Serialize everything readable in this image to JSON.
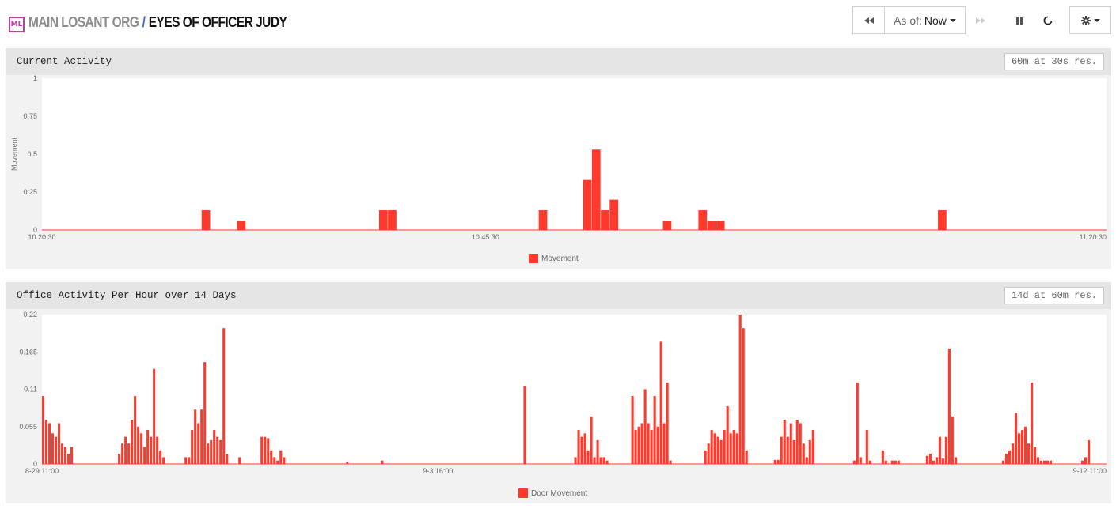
{
  "header": {
    "logo": "ML",
    "org": "MAIN LOSANT ORG",
    "separator": "/",
    "dashboard": "EYES OF OFFICER JUDY",
    "asof_label": "As of:",
    "asof_value": "Now",
    "icons": [
      "rewind-icon",
      "fast-forward-icon",
      "pause-icon",
      "refresh-icon",
      "gear-icon"
    ]
  },
  "colors": {
    "bar": "#ff3a2c",
    "block_bg": "#f2f2f2",
    "head_bg": "#e5e5e5",
    "plot_bg": "#ffffff",
    "brand": "#c0409a",
    "separator": "#3b64d6"
  },
  "blocks": [
    {
      "title": "Current Activity",
      "badge": "60m at 30s res."
    },
    {
      "title": "Office Activity Per Hour over 14 Days",
      "badge": "14d at 60m res."
    }
  ],
  "chart_data": [
    {
      "type": "bar",
      "title": "Current Activity",
      "ylabel": "Movement",
      "ylim": [
        0,
        1
      ],
      "yticks": [
        "0",
        "0.25",
        "0.5",
        "0.75",
        "1"
      ],
      "xticks": [
        "10:20:30",
        "10:45:30",
        "11:20:30"
      ],
      "bins": 120,
      "xtick_bins": [
        0,
        50,
        120
      ],
      "series": [
        {
          "name": "Movement",
          "values": [
            0,
            0,
            0,
            0,
            0,
            0,
            0,
            0,
            0,
            0,
            0,
            0,
            0,
            0,
            0,
            0,
            0,
            0,
            0.13,
            0,
            0,
            0,
            0.06,
            0,
            0,
            0,
            0,
            0,
            0,
            0,
            0,
            0,
            0,
            0,
            0,
            0,
            0,
            0,
            0.13,
            0.13,
            0,
            0,
            0,
            0,
            0,
            0,
            0,
            0,
            0,
            0,
            0,
            0,
            0,
            0,
            0,
            0,
            0.13,
            0,
            0,
            0,
            0,
            0.33,
            0.53,
            0.13,
            0.2,
            0,
            0,
            0,
            0,
            0,
            0.06,
            0,
            0,
            0,
            0.13,
            0.06,
            0.06,
            0,
            0,
            0,
            0,
            0,
            0,
            0,
            0,
            0,
            0,
            0,
            0,
            0,
            0,
            0,
            0,
            0,
            0,
            0,
            0,
            0,
            0,
            0,
            0,
            0.13,
            0,
            0,
            0,
            0,
            0,
            0,
            0,
            0,
            0,
            0,
            0,
            0,
            0,
            0,
            0,
            0,
            0,
            0
          ]
        }
      ],
      "legend": "bottom-center"
    },
    {
      "type": "bar",
      "title": "Office Activity Per Hour over 14 Days",
      "ylim": [
        0,
        0.22
      ],
      "yticks": [
        "0",
        "0.055",
        "0.11",
        "0.165",
        "0.22"
      ],
      "xticks": [
        "8-29 11:00",
        "9-3 16:00",
        "9-12 11:00"
      ],
      "bins": 336,
      "xtick_bins": [
        0,
        125,
        336
      ],
      "series": [
        {
          "name": "Door Movement",
          "values": [
            0.1,
            0.065,
            0.06,
            0.045,
            0.04,
            0.06,
            0.03,
            0.025,
            0.015,
            0.025,
            0,
            0,
            0,
            0,
            0,
            0,
            0,
            0,
            0,
            0,
            0,
            0,
            0,
            0,
            0.015,
            0.03,
            0.04,
            0.03,
            0.065,
            0.1,
            0.055,
            0.045,
            0.025,
            0.05,
            0.04,
            0.14,
            0.04,
            0.02,
            0.01,
            0,
            0,
            0,
            0,
            0,
            0,
            0.01,
            0.01,
            0.05,
            0.08,
            0.06,
            0.08,
            0.15,
            0.03,
            0.035,
            0.05,
            0.04,
            0.035,
            0.2,
            0.015,
            0,
            0,
            0,
            0.01,
            0,
            0,
            0,
            0,
            0,
            0,
            0.04,
            0.04,
            0.038,
            0.02,
            0.01,
            0.005,
            0.02,
            0.01,
            0,
            0,
            0,
            0,
            0,
            0,
            0,
            0,
            0,
            0,
            0,
            0,
            0,
            0,
            0,
            0,
            0,
            0,
            0,
            0.003,
            0,
            0,
            0,
            0,
            0,
            0,
            0,
            0,
            0,
            0,
            0.005,
            0,
            0,
            0,
            0,
            0,
            0,
            0,
            0,
            0,
            0,
            0,
            0,
            0,
            0,
            0,
            0,
            0,
            0,
            0,
            0,
            0,
            0,
            0,
            0,
            0,
            0,
            0,
            0,
            0,
            0,
            0,
            0,
            0,
            0,
            0,
            0,
            0,
            0,
            0,
            0,
            0,
            0,
            0,
            0,
            0.115,
            0,
            0,
            0,
            0,
            0,
            0,
            0,
            0,
            0,
            0,
            0,
            0,
            0,
            0,
            0,
            0.01,
            0.05,
            0.04,
            0.045,
            0.02,
            0.07,
            0.01,
            0.035,
            0.01,
            0.01,
            0.005,
            0,
            0,
            0,
            0,
            0,
            0,
            0,
            0.1,
            0.05,
            0.055,
            0.06,
            0.11,
            0.06,
            0.05,
            0.1,
            0.055,
            0.18,
            0.06,
            0.12,
            0.005,
            0,
            0,
            0,
            0,
            0,
            0,
            0,
            0,
            0,
            0,
            0.02,
            0.03,
            0.05,
            0.045,
            0.04,
            0.035,
            0.05,
            0.085,
            0.045,
            0.05,
            0.045,
            0.22,
            0.2,
            0.02,
            0,
            0,
            0,
            0,
            0,
            0,
            0,
            0,
            0.006,
            0.006,
            0.04,
            0.065,
            0.04,
            0.06,
            0.035,
            0.065,
            0.06,
            0.03,
            0.01,
            0.035,
            0.05,
            0,
            0,
            0,
            0,
            0,
            0,
            0,
            0,
            0,
            0,
            0,
            0,
            0.005,
            0.12,
            0.01,
            0,
            0.05,
            0.005,
            0,
            0,
            0,
            0.02,
            0.005,
            0,
            0.005,
            0.005,
            0.005,
            0,
            0,
            0,
            0,
            0,
            0,
            0,
            0,
            0.012,
            0.015,
            0.005,
            0.01,
            0.04,
            0.008,
            0.04,
            0.17,
            0.07,
            0.01,
            0,
            0,
            0,
            0,
            0,
            0,
            0,
            0,
            0,
            0,
            0,
            0,
            0,
            0,
            0.005,
            0.015,
            0.02,
            0.03,
            0.075,
            0.045,
            0.05,
            0.055,
            0.03,
            0.12,
            0.025,
            0.01,
            0.005,
            0.005,
            0.005,
            0.005,
            0,
            0,
            0,
            0,
            0,
            0,
            0,
            0,
            0,
            0.005,
            0.01,
            0.035
          ]
        }
      ],
      "legend": "bottom-center"
    }
  ]
}
